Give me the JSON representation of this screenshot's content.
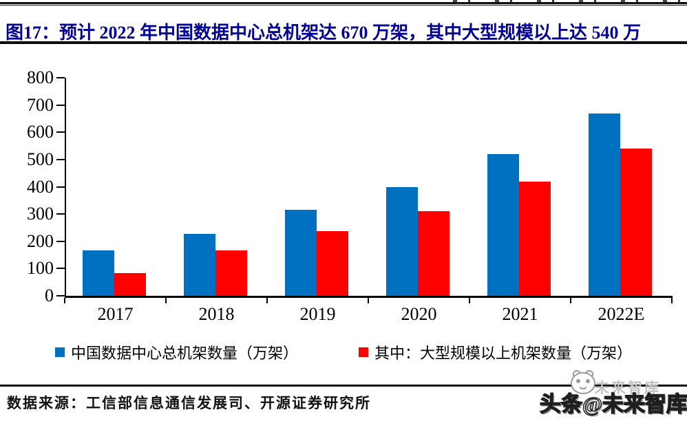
{
  "header": {
    "title": "图17：预计 2022 年中国数据中心总机架达 670 万架，其中大型规模以上达 540 万"
  },
  "chart_data": {
    "type": "bar",
    "title": "预计 2022 年中国数据中心总机架达 670 万架，其中大型规模以上达 540 万",
    "categories": [
      "2017",
      "2018",
      "2019",
      "2020",
      "2021",
      "2022E"
    ],
    "series": [
      {
        "name": "中国数据中心总机架数量（万架）",
        "color": "#0070C0",
        "values": [
          166,
          226,
          315,
          400,
          520,
          670
        ]
      },
      {
        "name": "其中：大型规模以上机架数量（万架）",
        "color": "#FF0000",
        "values": [
          83,
          166,
          236,
          310,
          420,
          540
        ]
      }
    ],
    "xlabel": "",
    "ylabel": "",
    "ylim": [
      0,
      800
    ],
    "ytick_step": 100,
    "grid": false,
    "legend_position": "bottom"
  },
  "footer": {
    "source": "数据来源：工信部信息通信发展司、开源证券研究所"
  },
  "watermark": {
    "main": "头条@未来智库",
    "ghost": "未来智库",
    "icon": "panda-face-icon"
  },
  "colors": {
    "title_text": "#000096",
    "axis": "#000000",
    "rule": "#0d0d0d"
  }
}
